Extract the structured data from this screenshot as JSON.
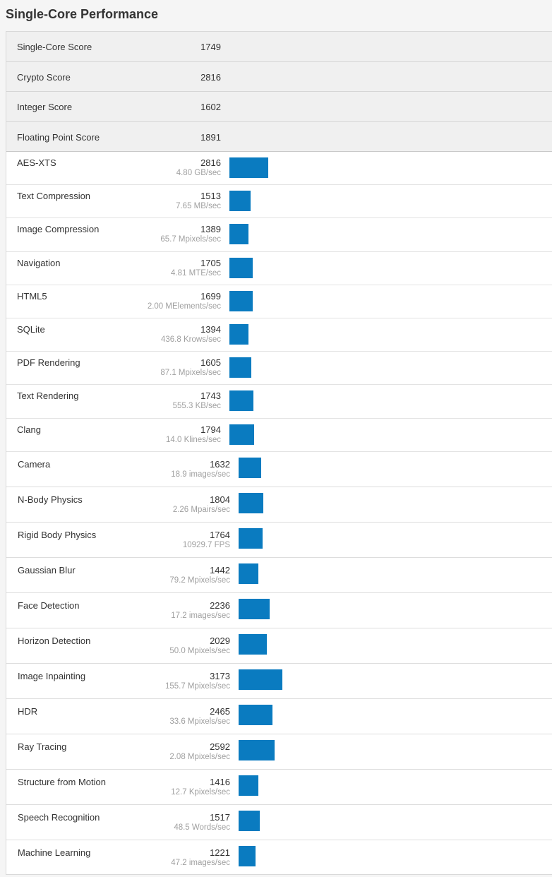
{
  "title": "Single-Core Performance",
  "bar_color": "#0a7bc0",
  "summary": [
    {
      "label": "Single-Core Score",
      "score": "1749"
    },
    {
      "label": "Crypto Score",
      "score": "2816"
    },
    {
      "label": "Integer Score",
      "score": "1602"
    },
    {
      "label": "Floating Point Score",
      "score": "1891"
    }
  ],
  "benchmarks_a": [
    {
      "name": "AES-XTS",
      "score": "2816",
      "rate": "4.80 GB/sec"
    },
    {
      "name": "Text Compression",
      "score": "1513",
      "rate": "7.65 MB/sec"
    },
    {
      "name": "Image Compression",
      "score": "1389",
      "rate": "65.7 Mpixels/sec"
    },
    {
      "name": "Navigation",
      "score": "1705",
      "rate": "4.81 MTE/sec"
    },
    {
      "name": "HTML5",
      "score": "1699",
      "rate": "2.00 MElements/sec"
    },
    {
      "name": "SQLite",
      "score": "1394",
      "rate": "436.8 Krows/sec"
    },
    {
      "name": "PDF Rendering",
      "score": "1605",
      "rate": "87.1 Mpixels/sec"
    },
    {
      "name": "Text Rendering",
      "score": "1743",
      "rate": "555.3 KB/sec"
    },
    {
      "name": "Clang",
      "score": "1794",
      "rate": "14.0 Klines/sec"
    }
  ],
  "benchmarks_b": [
    {
      "name": "Camera",
      "score": "1632",
      "rate": "18.9 images/sec"
    },
    {
      "name": "N-Body Physics",
      "score": "1804",
      "rate": "2.26 Mpairs/sec"
    },
    {
      "name": "Rigid Body Physics",
      "score": "1764",
      "rate": "10929.7 FPS"
    },
    {
      "name": "Gaussian Blur",
      "score": "1442",
      "rate": "79.2 Mpixels/sec"
    },
    {
      "name": "Face Detection",
      "score": "2236",
      "rate": "17.2 images/sec"
    },
    {
      "name": "Horizon Detection",
      "score": "2029",
      "rate": "50.0 Mpixels/sec"
    },
    {
      "name": "Image Inpainting",
      "score": "3173",
      "rate": "155.7 Mpixels/sec"
    },
    {
      "name": "HDR",
      "score": "2465",
      "rate": "33.6 Mpixels/sec"
    },
    {
      "name": "Ray Tracing",
      "score": "2592",
      "rate": "2.08 Mpixels/sec"
    },
    {
      "name": "Structure from Motion",
      "score": "1416",
      "rate": "12.7 Kpixels/sec"
    },
    {
      "name": "Speech Recognition",
      "score": "1517",
      "rate": "48.5 Words/sec"
    },
    {
      "name": "Machine Learning",
      "score": "1221",
      "rate": "47.2 images/sec"
    }
  ]
}
